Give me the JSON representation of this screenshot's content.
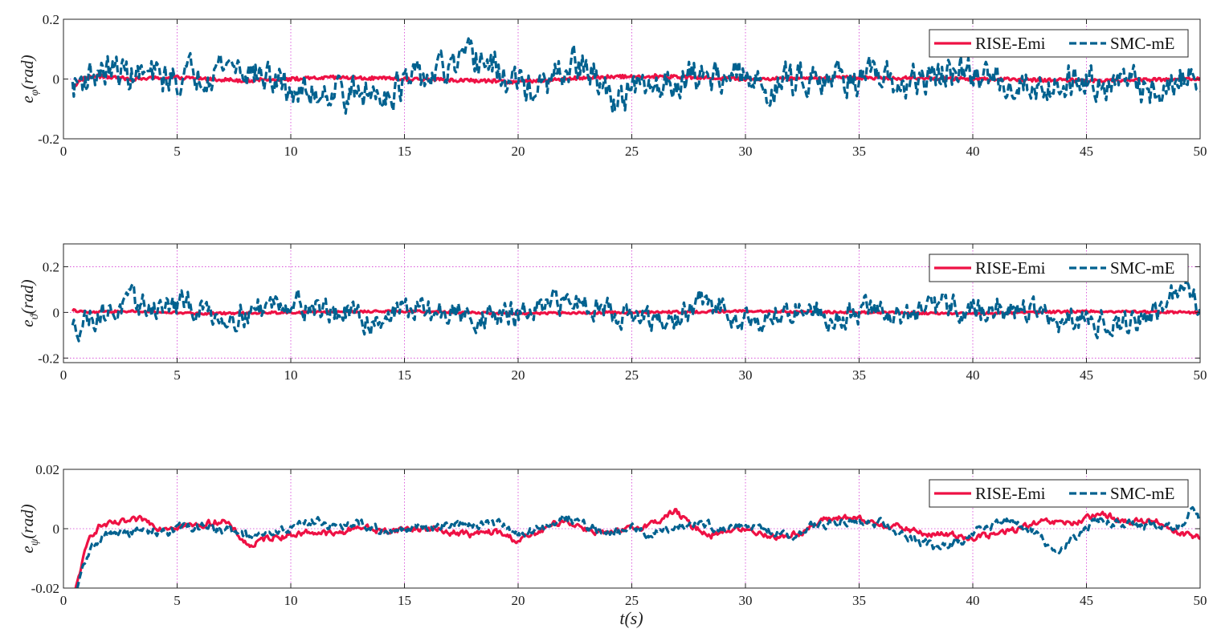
{
  "chart_data": [
    {
      "type": "line",
      "id": "phi",
      "ylabel": "e_φ(rad)",
      "ylabel_base": "e",
      "ylabel_sub": "φ",
      "ylabel_unit": "(rad)",
      "xlim": [
        0,
        50
      ],
      "ylim": [
        -0.2,
        0.2
      ],
      "xticks": [
        0,
        5,
        10,
        15,
        20,
        25,
        30,
        35,
        40,
        45,
        50
      ],
      "yticks": [
        -0.2,
        0,
        0.2
      ],
      "ytick_labels": [
        "-0.2",
        "0",
        "0.2"
      ],
      "grid": "dotted",
      "legend_position": "top-right",
      "series": [
        {
          "name": "RISE-Emi",
          "color": "#ee1144",
          "style": "solid",
          "t": [
            0.4,
            0.8,
            1.5,
            3,
            5,
            8,
            10,
            12,
            15,
            18,
            20,
            23,
            26,
            30,
            35,
            40,
            45,
            50
          ],
          "values": [
            -0.03,
            0,
            0.01,
            0,
            0.005,
            -0.005,
            0,
            0.005,
            0,
            -0.005,
            -0.01,
            0.005,
            0.01,
            0,
            0.005,
            0,
            -0.005,
            0
          ],
          "noise": 0.006
        },
        {
          "name": "SMC-mE",
          "color": "#00618f",
          "style": "dashed",
          "t": [
            0.4,
            1,
            2,
            3.5,
            5,
            7,
            7.5,
            9,
            10.5,
            12,
            13,
            15,
            17,
            18.3,
            19.5,
            21,
            22.5,
            23,
            24,
            25,
            27,
            29,
            31,
            33,
            35,
            37,
            39,
            41,
            43,
            45,
            47,
            48.5,
            49.5,
            50
          ],
          "values": [
            -0.03,
            0.01,
            0.03,
            0.01,
            0.0,
            0.05,
            0.05,
            0.0,
            -0.05,
            -0.03,
            -0.06,
            -0.02,
            0.03,
            0.07,
            0.0,
            -0.04,
            0.05,
            0.03,
            -0.06,
            -0.05,
            0.0,
            0.02,
            -0.03,
            0.02,
            0.0,
            -0.02,
            0.02,
            0.0,
            -0.03,
            0.01,
            -0.02,
            -0.05,
            0.03,
            -0.05
          ],
          "noise": 0.045
        }
      ]
    },
    {
      "type": "line",
      "id": "theta",
      "ylabel": "e_ϑ(rad)",
      "ylabel_base": "e",
      "ylabel_sub": "ϑ",
      "ylabel_unit": "(rad)",
      "xlim": [
        0,
        50
      ],
      "ylim": [
        -0.22,
        0.3
      ],
      "xticks": [
        0,
        5,
        10,
        15,
        20,
        25,
        30,
        35,
        40,
        45,
        50
      ],
      "yticks": [
        -0.2,
        0,
        0.2
      ],
      "ytick_labels": [
        "-0.2",
        "0",
        "0.2"
      ],
      "grid": "dotted",
      "legend_position": "top-right",
      "series": [
        {
          "name": "RISE-Emi",
          "color": "#ee1144",
          "style": "solid",
          "t": [
            0.4,
            1,
            3,
            6,
            10,
            15,
            20,
            25,
            30,
            35,
            40,
            45,
            50
          ],
          "values": [
            0.01,
            0,
            0.005,
            -0.005,
            0,
            0.005,
            -0.005,
            0,
            0.005,
            0,
            -0.005,
            0.005,
            0
          ],
          "noise": 0.005
        },
        {
          "name": "SMC-mE",
          "color": "#00618f",
          "style": "dashed",
          "t": [
            0.4,
            1,
            2,
            3,
            4,
            5.5,
            7,
            8,
            9.5,
            10.5,
            12,
            13.5,
            15,
            17,
            19,
            21,
            22,
            23,
            25,
            26.5,
            28,
            29.5,
            31,
            32.5,
            34,
            35.5,
            37,
            39,
            41,
            42.5,
            44,
            45.5,
            47,
            48.5,
            49.5,
            50
          ],
          "values": [
            -0.08,
            -0.02,
            0.0,
            0.04,
            0.02,
            0.03,
            -0.02,
            0.0,
            0.05,
            0.04,
            0.0,
            -0.04,
            0.02,
            -0.01,
            -0.02,
            0.0,
            0.05,
            0.05,
            -0.02,
            -0.06,
            0.04,
            0.0,
            -0.04,
            0.03,
            -0.03,
            0.02,
            -0.02,
            0.03,
            0.0,
            0.02,
            -0.06,
            -0.03,
            -0.05,
            0.03,
            0.12,
            0.02
          ],
          "noise": 0.045
        }
      ]
    },
    {
      "type": "line",
      "id": "psi",
      "ylabel": "e_ψ(rad)",
      "ylabel_base": "e",
      "ylabel_sub": "ψ",
      "ylabel_unit": "(rad)",
      "xlabel": "t(s)",
      "xlim": [
        0,
        50
      ],
      "ylim": [
        -0.02,
        0.02
      ],
      "xticks": [
        0,
        5,
        10,
        15,
        20,
        25,
        30,
        35,
        40,
        45,
        50
      ],
      "yticks": [
        -0.02,
        0,
        0.02
      ],
      "ytick_labels": [
        "-0.02",
        "0",
        "0.02"
      ],
      "grid": "dotted",
      "legend_position": "top-right",
      "series": [
        {
          "name": "RISE-Emi",
          "color": "#ee1144",
          "style": "solid",
          "t": [
            0.5,
            0.8,
            1.2,
            1.6,
            2.2,
            3.5,
            4.2,
            5,
            6,
            7,
            8.2,
            9,
            10,
            11,
            12,
            13,
            14,
            15,
            16,
            17,
            18,
            19,
            20,
            21,
            22,
            23,
            24,
            25,
            26,
            26.9,
            27.6,
            28.5,
            29.5,
            30.5,
            31.5,
            32.5,
            33.5,
            34.3,
            35.5,
            36.5,
            38,
            39,
            40,
            41,
            42,
            43,
            44.5,
            45.8,
            46.8,
            48,
            49,
            49.5,
            50
          ],
          "values": [
            -0.022,
            -0.012,
            -0.002,
            0.001,
            0.0015,
            0.003,
            0.0005,
            0.001,
            0.001,
            0.003,
            -0.006,
            -0.003,
            -0.002,
            -0.001,
            -0.002,
            0.001,
            -0.001,
            0.0,
            0.0,
            -0.001,
            -0.002,
            -0.001,
            -0.004,
            -0.001,
            0.003,
            0.0,
            -0.002,
            0.0,
            0.002,
            0.006,
            0.001,
            -0.002,
            0.0,
            -0.001,
            -0.003,
            -0.001,
            0.003,
            0.004,
            0.002,
            0.001,
            -0.002,
            -0.002,
            -0.003,
            -0.002,
            0.0,
            0.002,
            0.002,
            0.005,
            0.002,
            0.003,
            -0.001,
            -0.002,
            -0.003
          ],
          "noise": 0.0009
        },
        {
          "name": "SMC-mE",
          "color": "#00618f",
          "style": "dashed",
          "t": [
            0.6,
            0.9,
            1.3,
            1.8,
            2.5,
            3.5,
            4.5,
            5.5,
            6.5,
            7.5,
            8.5,
            9.5,
            10.5,
            11.3,
            12,
            13,
            14,
            15,
            16,
            17,
            18,
            19,
            20,
            21,
            22,
            23,
            24,
            25,
            26,
            27,
            28,
            29,
            30,
            31,
            32,
            33,
            34,
            35,
            36,
            37,
            38.5,
            39.5,
            40.5,
            41.5,
            42.5,
            43.6,
            44.5,
            45.5,
            46.5,
            47.5,
            48.5,
            49.3,
            49.7,
            50
          ],
          "values": [
            -0.021,
            -0.012,
            -0.006,
            -0.002,
            -0.0015,
            -0.001,
            -0.001,
            0.001,
            0.0,
            -0.001,
            -0.003,
            -0.001,
            0.002,
            0.003,
            0.0,
            0.002,
            -0.001,
            0.0,
            0.0,
            0.002,
            0.001,
            0.002,
            -0.002,
            0.0,
            0.004,
            0.001,
            -0.002,
            0.0,
            -0.002,
            0.001,
            0.002,
            0.0,
            0.001,
            -0.001,
            -0.003,
            0.001,
            0.002,
            0.003,
            0.002,
            -0.002,
            -0.007,
            -0.004,
            0.001,
            0.003,
            0.0,
            -0.008,
            -0.003,
            0.003,
            0.002,
            0.001,
            0.002,
            0.0,
            0.008,
            0.002
          ],
          "noise": 0.0012
        }
      ]
    }
  ]
}
